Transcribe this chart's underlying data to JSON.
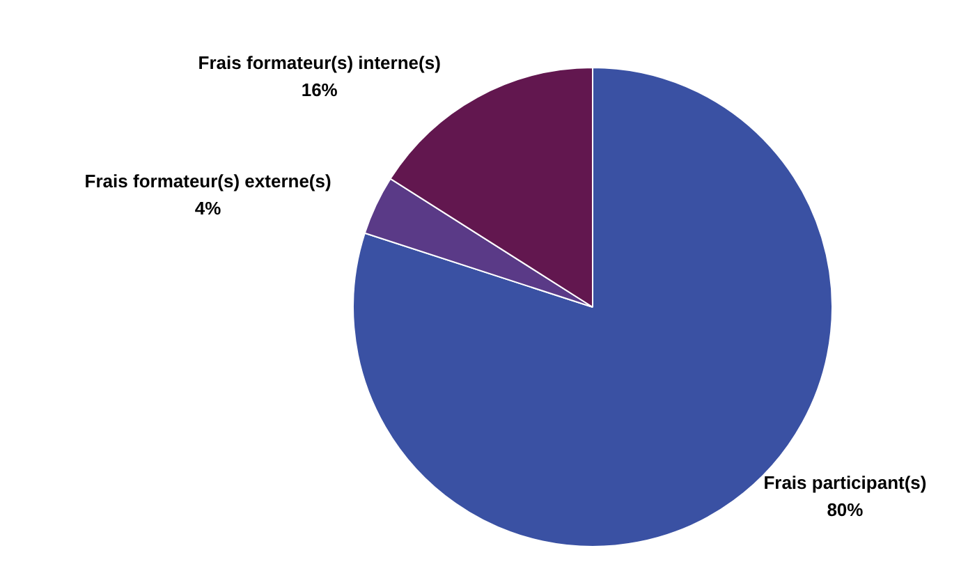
{
  "chart_data": {
    "type": "pie",
    "categories": [
      "Frais participant(s)",
      "Frais formateur(s) externe(s)",
      "Frais formateur(s) interne(s)"
    ],
    "values": [
      80,
      4,
      16
    ],
    "colors": [
      "#3a51a3",
      "#5a3a87",
      "#62174f"
    ],
    "value_labels": [
      "80%",
      "4%",
      "16%"
    ]
  }
}
